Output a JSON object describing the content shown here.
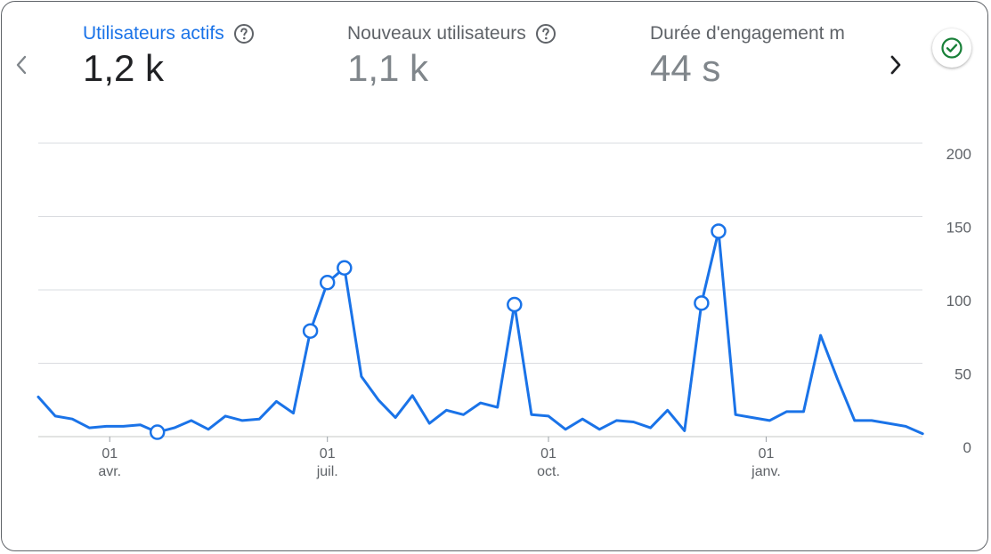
{
  "metrics": [
    {
      "label": "Utilisateurs actifs",
      "value": "1,2 k",
      "active": true
    },
    {
      "label": "Nouveaux utilisateurs",
      "value": "1,1 k",
      "active": false
    },
    {
      "label": "Durée d'engagement m",
      "value": "44 s",
      "active": false
    }
  ],
  "icons": {
    "prev": "chevron-left-icon",
    "next": "chevron-right-icon",
    "help": "help-circle-icon",
    "status": "check-circle-icon"
  },
  "colors": {
    "series": "#1a73e8",
    "status": "#188038",
    "grid": "#dadce0"
  },
  "chart_data": {
    "type": "line",
    "title": "",
    "xlabel": "",
    "ylabel": "",
    "ylim": [
      0,
      200
    ],
    "y_ticks": [
      "0",
      "50",
      "100",
      "150",
      "200"
    ],
    "x_ticks": [
      {
        "day": "01",
        "month": "avr.",
        "index": 4.2
      },
      {
        "day": "01",
        "month": "juil.",
        "index": 17.0
      },
      {
        "day": "01",
        "month": "oct.",
        "index": 30.0
      },
      {
        "day": "01",
        "month": "janv.",
        "index": 42.8
      }
    ],
    "grid": true,
    "series": [
      {
        "values": [
          27,
          14,
          12,
          6,
          7,
          7,
          8,
          3,
          6,
          11,
          5,
          14,
          11,
          12,
          24,
          16,
          72,
          105,
          115,
          41,
          25,
          13,
          28,
          9,
          18,
          15,
          23,
          20,
          90,
          15,
          14,
          5,
          12,
          5,
          11,
          10,
          6,
          18,
          4,
          91,
          140,
          15,
          13,
          11,
          17,
          17,
          69,
          39,
          11,
          11,
          9,
          7,
          2
        ],
        "highlighted": [
          7,
          16,
          17,
          18,
          28,
          39,
          40
        ]
      }
    ]
  }
}
